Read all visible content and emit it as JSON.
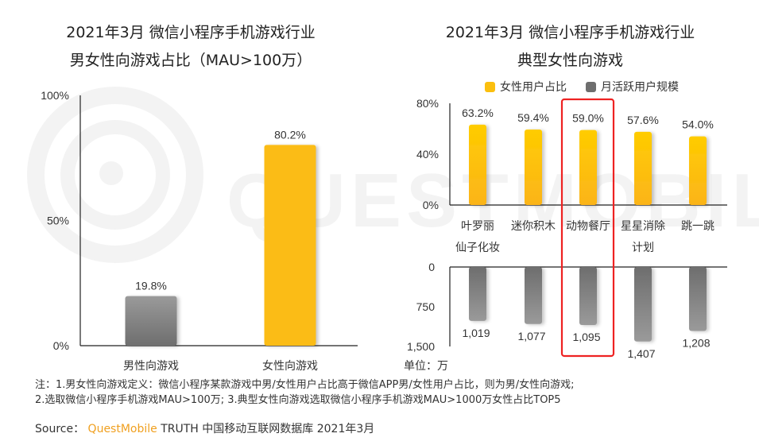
{
  "left_title_line1": "2021年3月 微信小程序手机游戏行业",
  "left_title_line2": "男女性向游戏占比（MAU>100万）",
  "right_title_line1": "2021年3月 微信小程序手机游戏行业",
  "right_title_line2": "典型女性向游戏",
  "legend": [
    {
      "label": "女性用户占比",
      "color": "#fbbf0e"
    },
    {
      "label": "月活跃用户规模",
      "color": "#7a7a7a"
    }
  ],
  "unit_label": "单位：万",
  "notes_line1": "注：1.男女性向游戏定义：微信小程序某款游戏中男/女性用户占比高于微信APP男/女性用户占比，则为男/女性向游戏;",
  "notes_line2": "2.选取微信小程序手机游戏MAU>100万; 3.典型女性向游戏选取微信小程序手机游戏MAU>1000万女性占比TOP5",
  "source_prefix": "Source：",
  "source_brand": "QuestMobile",
  "source_rest": "TRUTH 中国移动互联网数据库 2021年3月",
  "watermark_text": "QUESTMOBILE",
  "highlight_color": "#ee2222",
  "chart_data": [
    {
      "type": "bar",
      "title": "2021年3月 微信小程序手机游戏行业 男女性向游戏占比（MAU>100万）",
      "categories": [
        "男性向游戏",
        "女性向游戏"
      ],
      "values": [
        19.8,
        80.2
      ],
      "value_labels": [
        "19.8%",
        "80.2%"
      ],
      "colors": [
        "#8a8a8a",
        "#fbbc18"
      ],
      "ylim": [
        0,
        100
      ],
      "yticks": [
        0,
        50,
        100
      ],
      "ytick_labels": [
        "0%",
        "50%",
        "100%"
      ],
      "xlabel": "",
      "ylabel": "",
      "grid": false
    },
    {
      "type": "bar",
      "title": "2021年3月 微信小程序手机游戏行业 典型女性向游戏",
      "categories": [
        "叶罗丽仙子化妆",
        "迷你积木",
        "动物餐厅",
        "星星消除计划",
        "跳一跳"
      ],
      "category_lines": [
        [
          "叶罗丽",
          "仙子化妆"
        ],
        [
          "迷你积木"
        ],
        [
          "动物餐厅"
        ],
        [
          "星星消除",
          "计划"
        ],
        [
          "跳一跳"
        ]
      ],
      "highlighted_category": "动物餐厅",
      "legend_position": "top",
      "series": [
        {
          "name": "女性用户占比",
          "values": [
            63.2,
            59.4,
            59.0,
            57.6,
            54.0
          ],
          "value_labels": [
            "63.2%",
            "59.4%",
            "59.0%",
            "57.6%",
            "54.0%"
          ],
          "color": "#fbbf0e",
          "ylim": [
            0,
            80
          ],
          "yticks": [
            0,
            40,
            80
          ],
          "ytick_labels": [
            "0%",
            "40%",
            "80%"
          ]
        },
        {
          "name": "月活跃用户规模",
          "unit": "万",
          "values": [
            1019,
            1077,
            1095,
            1407,
            1208
          ],
          "value_labels": [
            "1,019",
            "1,077",
            "1,095",
            "1,407",
            "1,208"
          ],
          "color": "#7a7a7a",
          "ylim": [
            0,
            1500
          ],
          "inverted": true,
          "yticks": [
            0,
            750,
            1500
          ],
          "ytick_labels": [
            "0",
            "750",
            "1,500"
          ]
        }
      ],
      "grid": false
    }
  ]
}
